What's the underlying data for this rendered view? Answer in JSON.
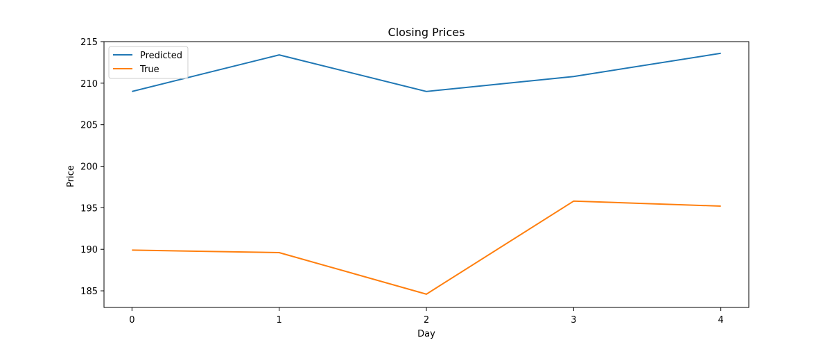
{
  "chart_data": {
    "type": "line",
    "title": "Closing Prices",
    "xlabel": "Day",
    "ylabel": "Price",
    "x": [
      0,
      1,
      2,
      3,
      4
    ],
    "xlim": [
      -0.19,
      4.19
    ],
    "ylim": [
      183.0,
      215.0
    ],
    "xticks": [
      0,
      1,
      2,
      3,
      4
    ],
    "yticks": [
      185,
      190,
      195,
      200,
      205,
      210,
      215
    ],
    "grid": false,
    "legend_position": "upper-left",
    "series": [
      {
        "name": "Predicted",
        "color": "#1f77b4",
        "values": [
          209.0,
          213.4,
          209.0,
          210.8,
          213.6
        ]
      },
      {
        "name": "True",
        "color": "#ff7f0e",
        "values": [
          189.9,
          189.6,
          184.6,
          195.8,
          195.2
        ]
      }
    ]
  }
}
